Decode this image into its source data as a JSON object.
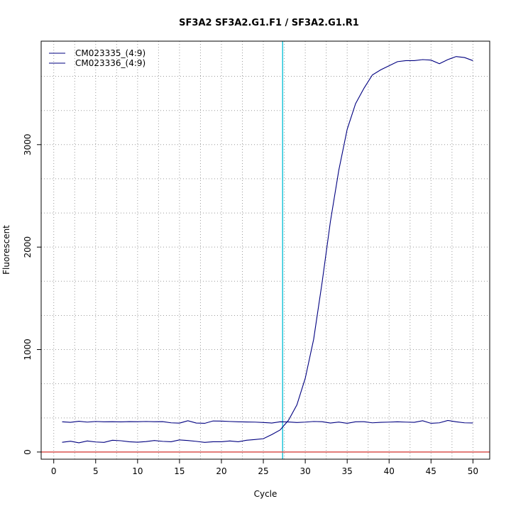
{
  "chart_data": {
    "type": "line",
    "title": "SF3A2  SF3A2.G1.F1 / SF3A2.G1.R1",
    "xlabel": "Cycle",
    "ylabel": "Fluorescent",
    "xlim": [
      -1.5,
      52
    ],
    "ylim": [
      -70,
      4010
    ],
    "x_ticks": [
      0,
      5,
      10,
      15,
      20,
      25,
      30,
      35,
      40,
      45,
      50
    ],
    "y_ticks": [
      0,
      1000,
      2000,
      3000
    ],
    "x_grid": [
      2.5,
      7.5,
      12.5,
      17.5,
      22.5,
      27.5,
      32.5,
      37.5,
      42.5,
      47.5
    ],
    "y_grid": [
      333,
      667,
      1000,
      1333,
      1667,
      2000,
      2333,
      2667,
      3000,
      3333,
      3667
    ],
    "grid": true,
    "legend_position": "top-left",
    "threshold_cycle": 27.3,
    "threshold_color": "#00bcd4",
    "baseline_value": 0,
    "baseline_color": "#d9534f",
    "series_color": "#000080",
    "series": [
      {
        "name": "CM023335_(4:9)",
        "x": [
          1,
          2,
          3,
          4,
          5,
          6,
          7,
          8,
          9,
          10,
          11,
          12,
          13,
          14,
          15,
          16,
          17,
          18,
          19,
          20,
          21,
          22,
          23,
          24,
          25,
          26,
          27,
          28,
          29,
          30,
          31,
          32,
          33,
          34,
          35,
          36,
          37,
          38,
          39,
          40,
          41,
          42,
          43,
          44,
          45,
          46,
          47,
          48,
          49,
          50
        ],
        "values": [
          295,
          290,
          300,
          292,
          298,
          295,
          296,
          294,
          297,
          296,
          298,
          296,
          297,
          285,
          282,
          305,
          283,
          280,
          303,
          302,
          298,
          295,
          293,
          292,
          288,
          283,
          295,
          293,
          288,
          292,
          298,
          296,
          283,
          292,
          280,
          295,
          296,
          285,
          290,
          292,
          295,
          292,
          290,
          305,
          280,
          285,
          308,
          295,
          285,
          284
        ]
      },
      {
        "name": "CM023336_(4:9)",
        "x": [
          1,
          2,
          3,
          4,
          5,
          6,
          7,
          8,
          9,
          10,
          11,
          12,
          13,
          14,
          15,
          16,
          17,
          18,
          19,
          20,
          21,
          22,
          23,
          24,
          25,
          26,
          27,
          28,
          29,
          30,
          31,
          32,
          33,
          34,
          35,
          36,
          37,
          38,
          39,
          40,
          41,
          42,
          43,
          44,
          45,
          46,
          47,
          48,
          49,
          50
        ],
        "values": [
          95,
          105,
          90,
          108,
          98,
          94,
          115,
          110,
          100,
          96,
          102,
          112,
          104,
          100,
          118,
          112,
          104,
          94,
          100,
          100,
          108,
          100,
          115,
          122,
          130,
          170,
          215,
          310,
          460,
          720,
          1100,
          1650,
          2250,
          2750,
          3150,
          3400,
          3550,
          3680,
          3730,
          3770,
          3810,
          3820,
          3820,
          3830,
          3825,
          3790,
          3830,
          3860,
          3850,
          3820
        ]
      }
    ]
  }
}
